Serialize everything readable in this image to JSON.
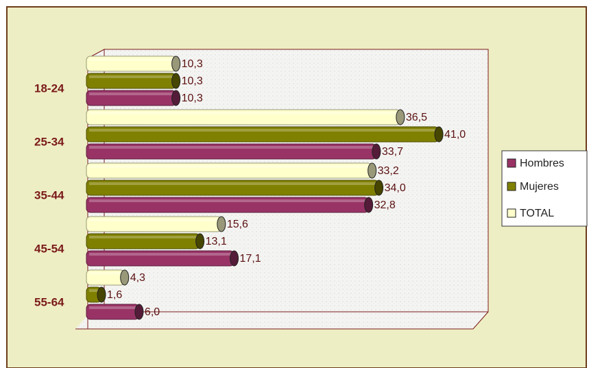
{
  "chart_data": {
    "type": "bar",
    "orientation": "horizontal",
    "categories": [
      "18-24",
      "25-34",
      "35-44",
      "45-54",
      "55-64"
    ],
    "series": [
      {
        "name": "Hombres",
        "color": "#993366",
        "values": [
          10.3,
          33.7,
          32.8,
          17.1,
          6.0
        ],
        "value_labels": [
          "10,3",
          "33,7",
          "32,8",
          "17,1",
          "6,0"
        ]
      },
      {
        "name": "Mujeres",
        "color": "#808000",
        "values": [
          10.3,
          41.0,
          34.0,
          13.1,
          1.6
        ],
        "value_labels": [
          "10,3",
          "41,0",
          "34,0",
          "13,1",
          "1,6"
        ]
      },
      {
        "name": "TOTAL",
        "color": "#ffffcc",
        "values": [
          10.3,
          36.5,
          33.2,
          15.6,
          4.3
        ],
        "value_labels": [
          "10,3",
          "36,5",
          "33,2",
          "15,6",
          "4,3"
        ]
      }
    ],
    "xlim": [
      0,
      45
    ],
    "legend": "right"
  }
}
